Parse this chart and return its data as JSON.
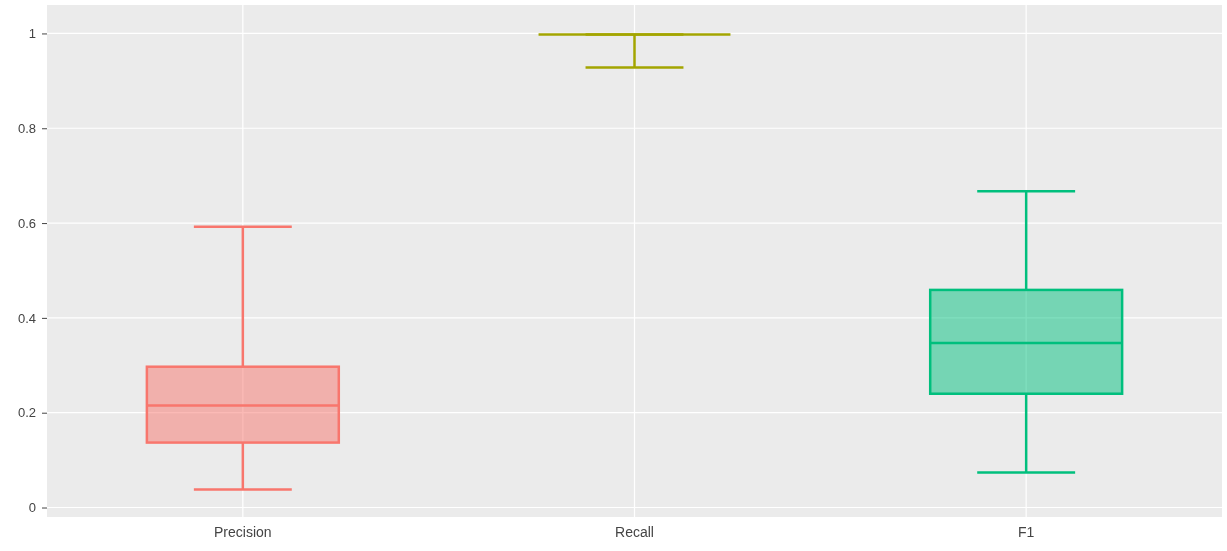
{
  "chart_data": {
    "type": "box",
    "categories": [
      "Precision",
      "Recall",
      "F1"
    ],
    "series": [
      {
        "color": "#f8766d",
        "boxes": [
          {
            "low": 0.038,
            "q1": 0.137,
            "median": 0.215,
            "q3": 0.297,
            "high": 0.592
          },
          null,
          null
        ]
      },
      {
        "color": "#a3a500",
        "boxes": [
          null,
          {
            "low": 0.928,
            "q1": 0.998,
            "median": 0.998,
            "q3": 0.998,
            "high": 0.998
          },
          null
        ]
      },
      {
        "color": "#00bf7d",
        "boxes": [
          null,
          null,
          {
            "low": 0.074,
            "q1": 0.24,
            "median": 0.347,
            "q3": 0.459,
            "high": 0.667
          }
        ]
      }
    ],
    "ylim": [
      -0.02,
      1.06
    ],
    "yticks": [
      0,
      0.2,
      0.4,
      0.6,
      0.8,
      1
    ],
    "grid": true
  }
}
